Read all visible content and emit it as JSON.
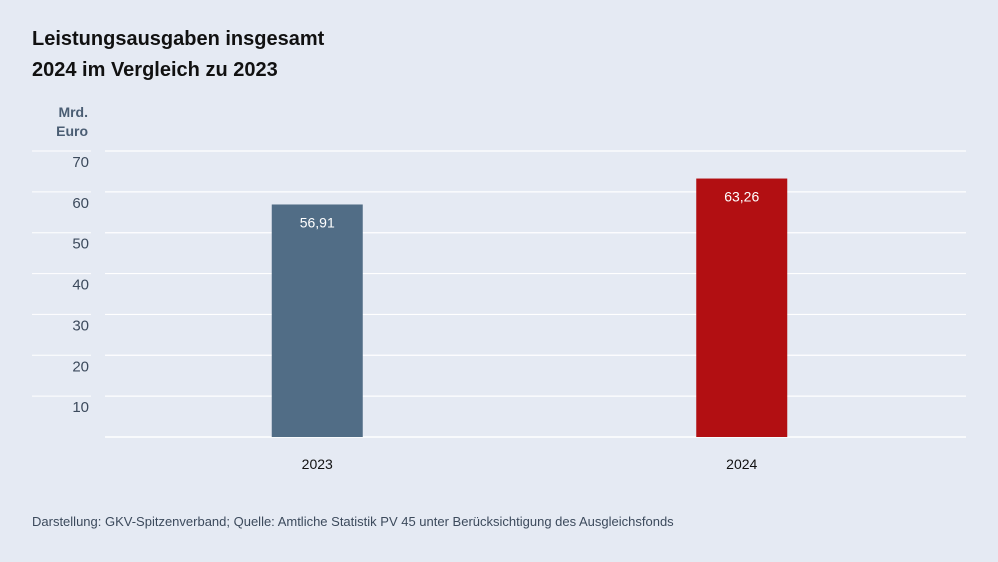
{
  "title_lines": [
    "Leistungsausgaben insgesamt",
    "2024 im Vergleich zu 2023"
  ],
  "unit_lines": [
    "Mrd.",
    "Euro"
  ],
  "footer": "Darstellung: GKV-Spitzenverband; Quelle: Amtliche Statistik PV 45 unter Berücksichtigung des Ausgleichsfonds",
  "chart_data": {
    "type": "bar",
    "title": "Leistungsausgaben insgesamt 2024 im Vergleich zu 2023",
    "ylabel": "Mrd. Euro",
    "xlabel": "",
    "categories": [
      "2023",
      "2024"
    ],
    "values": [
      56.91,
      63.26
    ],
    "value_labels": [
      "56,91",
      "63,26"
    ],
    "bar_colors": [
      "#516d86",
      "#b20f12"
    ],
    "yticks": [
      10,
      20,
      30,
      40,
      50,
      60,
      70
    ],
    "ylim": [
      0,
      70
    ],
    "grid": true,
    "legend": "none"
  }
}
